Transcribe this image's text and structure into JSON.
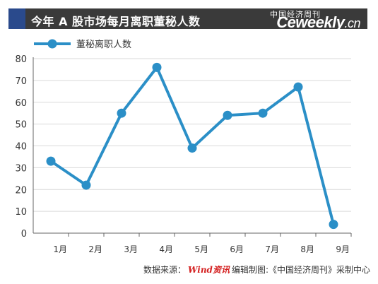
{
  "header": {
    "title": "今年 A 股市场每月离职董秘人数",
    "brand_cn": "中国经济周刊",
    "brand_en": "Ceweekly",
    "brand_suffix": ".cn"
  },
  "source": {
    "label": "数据来源：",
    "provider_logo": "Wind资讯",
    "credit": "编辑制图:《中国经济周刊》采制中心"
  },
  "colors": {
    "line": "#2b8fc7",
    "grid": "#d9d9d9",
    "title_bar": "#3a3a3a",
    "accent": "#2a4a8c"
  },
  "chart_data": {
    "type": "line",
    "title": "今年 A 股市场每月离职董秘人数",
    "xlabel": "",
    "ylabel": "",
    "legend_position": "top-left",
    "grid": true,
    "ylim": [
      0,
      80
    ],
    "yticks": [
      0,
      10,
      20,
      30,
      40,
      50,
      60,
      70,
      80
    ],
    "xticks": [
      "1月",
      "2月",
      "3月",
      "4月",
      "5月",
      "6月",
      "7月",
      "8月",
      "9月"
    ],
    "x": [
      0.5,
      1.5,
      2.5,
      3.5,
      4.5,
      5.5,
      6.5,
      7.5,
      8.5
    ],
    "series": [
      {
        "name": "董秘离职人数",
        "values": [
          33,
          22,
          55,
          76,
          39,
          54,
          55,
          67,
          4
        ]
      }
    ]
  }
}
